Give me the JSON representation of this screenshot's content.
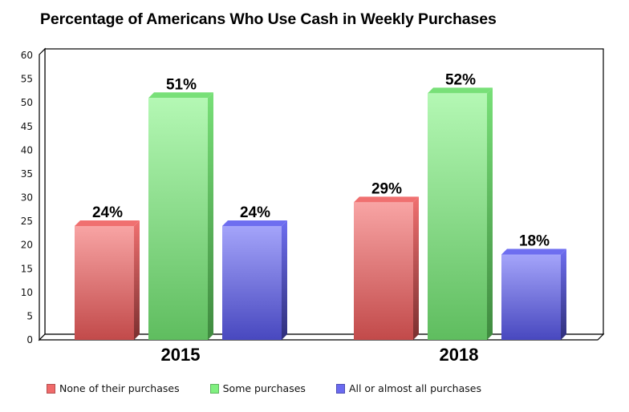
{
  "chart_data": {
    "type": "bar",
    "style": "3d-clustered-column",
    "title": "Percentage of Americans Who Use Cash in Weekly Purchases",
    "categories": [
      "2015",
      "2018"
    ],
    "series": [
      {
        "name": "None of their purchases",
        "values": [
          24,
          29
        ],
        "labels": [
          "24%",
          "29%"
        ],
        "color": "#e06666"
      },
      {
        "name": "Some purchases",
        "values": [
          51,
          52
        ],
        "labels": [
          "51%",
          "52%"
        ],
        "color": "#7fd97f"
      },
      {
        "name": "All or almost all purchases",
        "values": [
          24,
          18
        ],
        "labels": [
          "24%",
          "18%"
        ],
        "color": "#7373e6"
      }
    ],
    "xlabel": "",
    "ylabel": "",
    "ylim": [
      0,
      60
    ],
    "yticks": [
      0,
      5,
      10,
      15,
      20,
      25,
      30,
      35,
      40,
      45,
      50,
      55,
      60
    ],
    "grid": false,
    "legend_position": "bottom"
  },
  "title": "Percentage of Americans Who Use Cash in Weekly Purchases",
  "legend": [
    {
      "label": "None of their purchases",
      "color": "#f06a6a"
    },
    {
      "label": "Some purchases",
      "color": "#80f080"
    },
    {
      "label": "All or almost all purchases",
      "color": "#6a6af0"
    }
  ]
}
